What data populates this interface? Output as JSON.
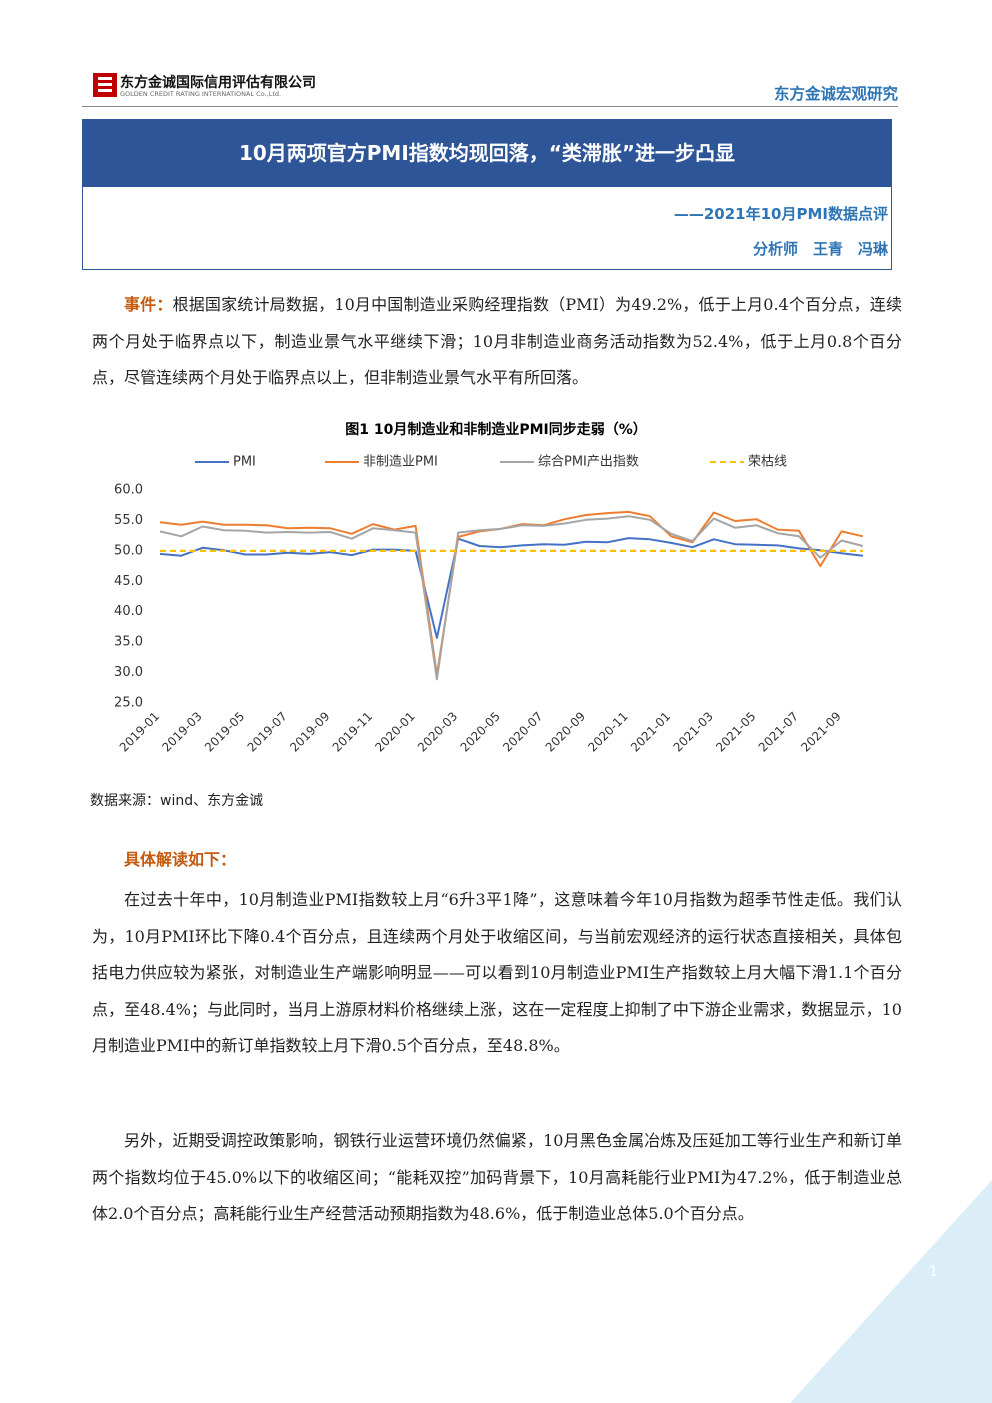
{
  "header": {
    "company": "东方金诚国际信用评估有限公司",
    "company_en": "GOLDEN CREDIT RATING INTERNATIONAL Co.,Ltd.",
    "series_name": "东方金诚宏观研究"
  },
  "title": "10月两项官方PMI指数均现回落，“类滞胀”进一步凸显",
  "subtitle": "——2021年10月PMI数据点评",
  "authors": "分析师　王青　冯琳",
  "event": {
    "lead": "事件：",
    "text": "根据国家统计局数据，10月中国制造业采购经理指数（PMI）为49.2%，低于上月0.4个百分点，连续两个月处于临界点以下，制造业景气水平继续下滑；10月非制造业商务活动指数为52.4%，低于上月0.8个百分点，尽管连续两个月处于临界点以上，但非制造业景气水平有所回落。"
  },
  "chart_data": {
    "type": "line",
    "title": "图1  10月制造业和非制造业PMI同步走弱（%）",
    "categories": [
      "2019-01",
      null,
      "2019-03",
      null,
      "2019-05",
      null,
      "2019-07",
      null,
      "2019-09",
      null,
      "2019-11",
      null,
      "2020-01",
      null,
      "2020-03",
      null,
      "2020-05",
      null,
      "2020-07",
      null,
      "2020-09",
      null,
      "2020-11",
      null,
      "2021-01",
      null,
      "2021-03",
      null,
      "2021-05",
      null,
      "2021-07",
      null,
      "2021-09",
      null
    ],
    "series": [
      {
        "name": "PMI",
        "color": "#4472c4",
        "values": [
          49.5,
          49.2,
          50.5,
          50.1,
          49.4,
          49.4,
          49.7,
          49.5,
          49.8,
          49.3,
          50.2,
          50.2,
          50.0,
          35.7,
          52.0,
          50.8,
          50.6,
          50.9,
          51.1,
          51.0,
          51.5,
          51.4,
          52.1,
          51.9,
          51.3,
          50.6,
          51.9,
          51.1,
          51.0,
          50.9,
          50.4,
          50.1,
          49.6,
          49.2
        ]
      },
      {
        "name": "非制造业PMI",
        "color": "#ed7d31",
        "values": [
          54.7,
          54.3,
          54.8,
          54.3,
          54.3,
          54.2,
          53.7,
          53.8,
          53.7,
          52.8,
          54.4,
          53.5,
          54.1,
          29.6,
          52.3,
          53.2,
          53.6,
          54.4,
          54.2,
          55.2,
          55.9,
          56.2,
          56.4,
          55.7,
          52.4,
          51.4,
          56.3,
          54.9,
          55.2,
          53.5,
          53.3,
          47.5,
          53.2,
          52.4
        ]
      },
      {
        "name": "综合PMI产出指数",
        "color": "#a5a5a5",
        "values": [
          53.2,
          52.4,
          54.0,
          53.4,
          53.3,
          53.0,
          53.1,
          53.0,
          53.1,
          52.0,
          53.7,
          53.4,
          53.0,
          28.9,
          53.0,
          53.4,
          53.6,
          54.2,
          54.1,
          54.5,
          55.1,
          55.3,
          55.7,
          55.1,
          52.8,
          51.6,
          55.3,
          53.8,
          54.2,
          52.9,
          52.4,
          48.9,
          51.7,
          50.8
        ]
      },
      {
        "name": "荣枯线",
        "color": "#ffc000",
        "dashed": true,
        "values": [
          50,
          50,
          50,
          50,
          50,
          50,
          50,
          50,
          50,
          50,
          50,
          50,
          50,
          50,
          50,
          50,
          50,
          50,
          50,
          50,
          50,
          50,
          50,
          50,
          50,
          50,
          50,
          50,
          50,
          50,
          50,
          50,
          50,
          50
        ]
      }
    ],
    "ylim": [
      25,
      60
    ],
    "yticks": [
      {
        "value": 25,
        "label": "25.0"
      },
      {
        "value": 30,
        "label": "30.0"
      },
      {
        "value": 35,
        "label": "35.0"
      },
      {
        "value": 40,
        "label": "40.0"
      },
      {
        "value": 45,
        "label": "45.0"
      },
      {
        "value": 50,
        "label": "50.0"
      },
      {
        "value": 55,
        "label": "55.0"
      },
      {
        "value": 60,
        "label": "60.0"
      }
    ],
    "grid": false
  },
  "source": "数据来源：wind、东方金诚",
  "section_heading": "具体解读如下：",
  "paragraphs": [
    "在过去十年中，10月制造业PMI指数较上月“6升3平1降”，这意味着今年10月指数为超季节性走低。我们认为，10月PMI环比下降0.4个百分点，且连续两个月处于收缩区间，与当前宏观经济的运行状态直接相关，具体包括电力供应较为紧张，对制造业生产端影响明显——可以看到10月制造业PMI生产指数较上月大幅下滑1.1个百分点，至48.4%；与此同时，当月上游原材料价格继续上涨，这在一定程度上抑制了中下游企业需求，数据显示，10月制造业PMI中的新订单指数较上月下滑0.5个百分点，至48.8%。",
    "另外，近期受调控政策影响，钢铁行业运营环境仍然偏紧，10月黑色金属冶炼及压延加工等行业生产和新订单两个指数均位于45.0%以下的收缩区间；“能耗双控”加码背景下，10月高耗能行业PMI为47.2%，低于制造业总体2.0个百分点；高耗能行业生产经营活动预期指数为48.6%，低于制造业总体5.0个百分点。"
  ],
  "page_number": "1"
}
